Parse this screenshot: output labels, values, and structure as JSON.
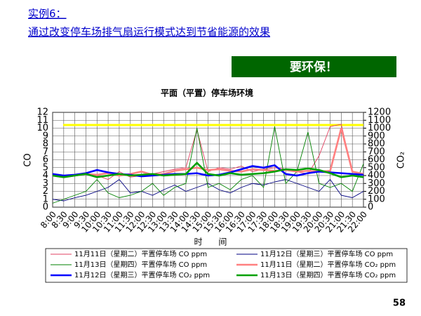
{
  "slide": {
    "heading": "实例6：",
    "subheading": "通过改变停车场排气扇运行模式达到节省能源的效果",
    "badge": "要环保！",
    "page_number": 58
  },
  "chart_data": {
    "type": "line",
    "title": "平面（平置）停车场环境",
    "categories": [
      "8:00",
      "8:30",
      "9:00",
      "9:30",
      "10:00",
      "10:30",
      "11:00",
      "11:30",
      "12:00",
      "12:30",
      "13:00",
      "13:30",
      "14:00",
      "14:30",
      "15:00",
      "15:30",
      "16:00",
      "16:30",
      "17:00",
      "17:30",
      "18:00",
      "18:30",
      "19:00",
      "19:30",
      "20:00",
      "20:30",
      "21:00",
      "21:30",
      "22:00"
    ],
    "x_label": "时      间",
    "y_label": "CO",
    "y2_label": "CO₂",
    "ylim": [
      0,
      12
    ],
    "yticks": [
      0,
      1,
      2,
      3,
      4,
      5,
      6,
      7,
      8,
      9,
      10,
      11,
      12
    ],
    "y2lim": [
      0,
      1200
    ],
    "y2ticks": [
      0,
      100,
      200,
      300,
      400,
      500,
      600,
      700,
      800,
      900,
      1000,
      1100,
      1200
    ],
    "grid": true,
    "threshold": {
      "axis": "y",
      "value": 10.4,
      "color": "#ffff00"
    },
    "series": [
      {
        "name": "11月11日（星期二）平置停车场 CO ppm",
        "color": "#e04060",
        "axis": "y",
        "values": [
          4,
          3.8,
          4,
          4.2,
          4,
          3.5,
          4.5,
          3.8,
          4,
          4.2,
          4.5,
          4.8,
          5,
          9.8,
          4.5,
          5,
          4.8,
          5.2,
          4.5,
          4.8,
          5,
          4.8,
          4.5,
          4.2,
          6.5,
          10.2,
          10.5,
          4.5,
          4
        ]
      },
      {
        "name": "11月12日（星期三）平置停车场 CO ppm",
        "color": "#000080",
        "axis": "y",
        "values": [
          1,
          0.8,
          1.2,
          1.5,
          2,
          2.5,
          3.5,
          1.8,
          2,
          1.5,
          2.2,
          2.8,
          2,
          2.5,
          3,
          2.2,
          1.8,
          2.5,
          3,
          2.8,
          3.2,
          3.5,
          3,
          2.5,
          2,
          3.5,
          1.5,
          1.2,
          2
        ]
      },
      {
        "name": "11月13日（星期四）平置停车场 CO ppm",
        "color": "#008000",
        "axis": "y",
        "values": [
          0.5,
          1,
          1.5,
          2,
          3.5,
          1.8,
          1.2,
          1.5,
          2,
          3,
          1.5,
          2.5,
          3,
          10,
          2.5,
          3,
          2.2,
          3.5,
          4,
          2.5,
          10.2,
          3,
          4.5,
          9.5,
          3,
          2.5,
          3,
          2,
          5.5
        ]
      },
      {
        "name": "11月11日（星期二）平置停车场 CO₂ ppm",
        "color": "#ff8080",
        "axis": "y2",
        "values": [
          400,
          380,
          400,
          420,
          410,
          430,
          400,
          420,
          450,
          410,
          420,
          460,
          480,
          500,
          470,
          480,
          460,
          450,
          480,
          470,
          460,
          470,
          450,
          460,
          450,
          460,
          1000,
          450,
          420
        ]
      },
      {
        "name": "11月12日（星期三）平置停车场 CO₂ ppm",
        "color": "#0000ff",
        "axis": "y2",
        "values": [
          420,
          400,
          410,
          430,
          470,
          440,
          420,
          410,
          390,
          400,
          410,
          420,
          420,
          430,
          400,
          410,
          440,
          480,
          520,
          500,
          530,
          420,
          400,
          430,
          450,
          440,
          430,
          420,
          410
        ]
      },
      {
        "name": "11月13日（星期四）平置停车场 CO₂ ppm",
        "color": "#00a000",
        "axis": "y2",
        "values": [
          400,
          380,
          400,
          420,
          380,
          400,
          420,
          400,
          410,
          420,
          400,
          410,
          420,
          560,
          420,
          400,
          430,
          410,
          420,
          430,
          450,
          480,
          470,
          490,
          470,
          430,
          380,
          400,
          380
        ]
      }
    ]
  }
}
